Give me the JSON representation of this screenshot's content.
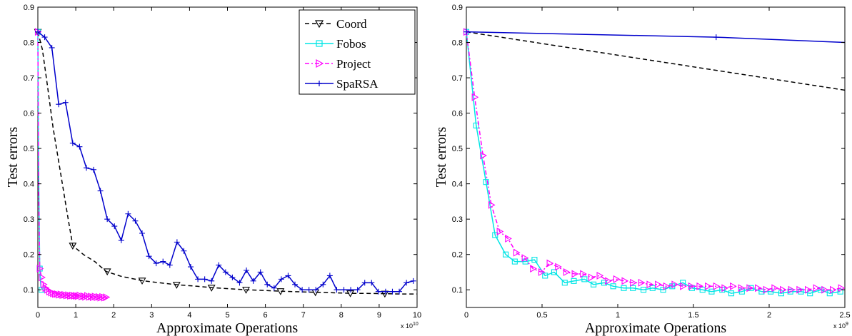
{
  "chart_data": [
    {
      "type": "line",
      "xlabel": "Approximate Operations",
      "ylabel": "Test errors",
      "x_multiplier_base": "x 10",
      "x_multiplier_exp": "10",
      "xlim": [
        0,
        10
      ],
      "ylim": [
        0.05,
        0.9
      ],
      "x_ticks": [
        "0",
        "1",
        "2",
        "3",
        "4",
        "5",
        "6",
        "7",
        "8",
        "9",
        "10"
      ],
      "y_ticks": [
        "0.1",
        "0.2",
        "0.3",
        "0.4",
        "0.5",
        "0.6",
        "0.7",
        "0.8",
        "0.9"
      ],
      "legend": "top-right",
      "series": [
        {
          "name": "Coord",
          "color": "#000000",
          "dash": "6,4",
          "marker": "triangle-down",
          "x": [
            0,
            0.12,
            0.25,
            0.4,
            0.6,
            0.8,
            0.92,
            1.2,
            1.5,
            1.8,
            2.2,
            2.75,
            3.2,
            3.7,
            4.2,
            4.6,
            5.2,
            5.5,
            6.0,
            6.4,
            7.0,
            7.3,
            8.0,
            8.25,
            8.6,
            9.15,
            9.6,
            10.0
          ],
          "y": [
            0.83,
            0.78,
            0.68,
            0.56,
            0.43,
            0.3,
            0.225,
            0.2,
            0.18,
            0.152,
            0.138,
            0.126,
            0.12,
            0.114,
            0.11,
            0.106,
            0.102,
            0.1,
            0.098,
            0.096,
            0.094,
            0.093,
            0.091,
            0.09,
            0.09,
            0.089,
            0.088,
            0.088
          ],
          "marker_x": [
            0,
            0.92,
            1.83,
            2.75,
            3.66,
            4.58,
            5.49,
            6.4,
            7.32,
            8.24,
            9.15
          ],
          "marker_y": [
            0.83,
            0.225,
            0.152,
            0.126,
            0.114,
            0.106,
            0.1,
            0.096,
            0.093,
            0.09,
            0.089
          ]
        },
        {
          "name": "Fobos",
          "color": "#00e5e5",
          "dash": "",
          "marker": "square",
          "x": [
            0,
            0.02,
            0.05,
            0.08,
            0.12
          ],
          "y": [
            0.83,
            0.45,
            0.16,
            0.11,
            0.1
          ],
          "marker_x": [
            0,
            0.05,
            0.1
          ],
          "marker_y": [
            0.83,
            0.16,
            0.1
          ]
        },
        {
          "name": "Project",
          "color": "#ff00ff",
          "dash": "6,3,2,3",
          "marker": "triangle-right",
          "x": [
            0,
            0.02,
            0.05,
            0.1,
            0.15,
            0.2,
            0.25,
            0.3,
            0.35,
            0.4,
            0.45,
            0.5,
            0.55,
            0.6,
            0.65,
            0.7,
            0.75,
            0.8,
            0.85,
            0.9,
            0.95,
            1.0,
            1.05,
            1.1,
            1.15,
            1.2,
            1.25,
            1.3,
            1.35,
            1.4,
            1.45,
            1.5,
            1.55,
            1.6,
            1.65,
            1.7,
            1.75,
            1.8
          ],
          "y": [
            0.83,
            0.4,
            0.16,
            0.135,
            0.115,
            0.105,
            0.1,
            0.095,
            0.092,
            0.09,
            0.088,
            0.088,
            0.086,
            0.087,
            0.085,
            0.086,
            0.084,
            0.085,
            0.083,
            0.084,
            0.083,
            0.083,
            0.082,
            0.084,
            0.081,
            0.082,
            0.08,
            0.083,
            0.08,
            0.081,
            0.079,
            0.081,
            0.079,
            0.08,
            0.078,
            0.08,
            0.078,
            0.079
          ],
          "marker_x": [
            0,
            0.05,
            0.1,
            0.15,
            0.2,
            0.25,
            0.3,
            0.35,
            0.4,
            0.45,
            0.5,
            0.55,
            0.6,
            0.65,
            0.7,
            0.75,
            0.8,
            0.85,
            0.9,
            0.95,
            1.0,
            1.05,
            1.1,
            1.15,
            1.2,
            1.25,
            1.3,
            1.35,
            1.4,
            1.45,
            1.5,
            1.55,
            1.6,
            1.65,
            1.7,
            1.75,
            1.8
          ],
          "marker_y": [
            0.83,
            0.16,
            0.135,
            0.115,
            0.105,
            0.1,
            0.095,
            0.092,
            0.09,
            0.088,
            0.088,
            0.086,
            0.087,
            0.085,
            0.086,
            0.084,
            0.085,
            0.083,
            0.084,
            0.083,
            0.083,
            0.082,
            0.084,
            0.081,
            0.082,
            0.08,
            0.083,
            0.08,
            0.081,
            0.079,
            0.081,
            0.079,
            0.08,
            0.078,
            0.08,
            0.078,
            0.079
          ]
        },
        {
          "name": "SpaRSA",
          "color": "#0000cc",
          "dash": "",
          "marker": "plus",
          "x": [
            0,
            0.18,
            0.37,
            0.55,
            0.73,
            0.92,
            1.1,
            1.28,
            1.47,
            1.65,
            1.83,
            2.02,
            2.2,
            2.38,
            2.57,
            2.75,
            2.93,
            3.12,
            3.3,
            3.48,
            3.67,
            3.85,
            4.03,
            4.22,
            4.4,
            4.58,
            4.77,
            4.95,
            5.13,
            5.32,
            5.5,
            5.68,
            5.87,
            6.05,
            6.23,
            6.42,
            6.6,
            6.78,
            6.97,
            7.15,
            7.33,
            7.52,
            7.7,
            7.88,
            8.07,
            8.25,
            8.43,
            8.62,
            8.8,
            8.98,
            9.17,
            9.35,
            9.53,
            9.72,
            9.9
          ],
          "y": [
            0.83,
            0.815,
            0.785,
            0.625,
            0.63,
            0.515,
            0.505,
            0.445,
            0.44,
            0.38,
            0.3,
            0.28,
            0.24,
            0.315,
            0.295,
            0.26,
            0.195,
            0.175,
            0.18,
            0.17,
            0.235,
            0.21,
            0.165,
            0.13,
            0.13,
            0.125,
            0.17,
            0.15,
            0.135,
            0.12,
            0.155,
            0.125,
            0.15,
            0.115,
            0.105,
            0.13,
            0.14,
            0.115,
            0.1,
            0.1,
            0.1,
            0.115,
            0.14,
            0.1,
            0.1,
            0.1,
            0.1,
            0.12,
            0.12,
            0.095,
            0.095,
            0.095,
            0.095,
            0.12,
            0.125
          ]
        }
      ]
    },
    {
      "type": "line",
      "xlabel": "Approximate Operations",
      "ylabel": "Test errors",
      "x_multiplier_base": "x 10",
      "x_multiplier_exp": "9",
      "xlim": [
        0,
        2.5
      ],
      "ylim": [
        0.05,
        0.9
      ],
      "x_ticks": [
        "0",
        "0.5",
        "1",
        "1.5",
        "2",
        "2.5"
      ],
      "y_ticks": [
        "0.1",
        "0.2",
        "0.3",
        "0.4",
        "0.5",
        "0.6",
        "0.7",
        "0.8",
        "0.9"
      ],
      "series": [
        {
          "name": "Coord",
          "color": "#000000",
          "dash": "6,4",
          "marker": "none",
          "x": [
            0,
            2.5
          ],
          "y": [
            0.83,
            0.665
          ]
        },
        {
          "name": "Fobos",
          "color": "#00e5e5",
          "dash": "",
          "marker": "square",
          "x": [
            0,
            0.065,
            0.13,
            0.19,
            0.26,
            0.32,
            0.39,
            0.45,
            0.52,
            0.58,
            0.65,
            0.71,
            0.78,
            0.84,
            0.91,
            0.97,
            1.04,
            1.1,
            1.17,
            1.23,
            1.3,
            1.36,
            1.43,
            1.49,
            1.56,
            1.62,
            1.69,
            1.75,
            1.82,
            1.88,
            1.95,
            2.01,
            2.08,
            2.14,
            2.21,
            2.27,
            2.34,
            2.4,
            2.47
          ],
          "y": [
            0.83,
            0.565,
            0.405,
            0.255,
            0.2,
            0.18,
            0.18,
            0.185,
            0.14,
            0.15,
            0.12,
            0.125,
            0.13,
            0.115,
            0.12,
            0.11,
            0.105,
            0.105,
            0.1,
            0.105,
            0.1,
            0.11,
            0.12,
            0.105,
            0.1,
            0.095,
            0.1,
            0.09,
            0.095,
            0.105,
            0.095,
            0.095,
            0.09,
            0.095,
            0.095,
            0.09,
            0.1,
            0.09,
            0.095
          ]
        },
        {
          "name": "Project",
          "color": "#ff00ff",
          "dash": "6,3,2,3",
          "marker": "triangle-right",
          "x": [
            0,
            0.055,
            0.11,
            0.165,
            0.22,
            0.275,
            0.33,
            0.385,
            0.44,
            0.495,
            0.55,
            0.605,
            0.66,
            0.715,
            0.77,
            0.825,
            0.88,
            0.935,
            0.99,
            1.045,
            1.1,
            1.155,
            1.21,
            1.265,
            1.32,
            1.375,
            1.43,
            1.485,
            1.54,
            1.595,
            1.65,
            1.705,
            1.76,
            1.815,
            1.87,
            1.925,
            1.98,
            2.035,
            2.09,
            2.145,
            2.2,
            2.255,
            2.31,
            2.365,
            2.42,
            2.475
          ],
          "y": [
            0.83,
            0.645,
            0.48,
            0.34,
            0.265,
            0.245,
            0.205,
            0.19,
            0.16,
            0.15,
            0.175,
            0.165,
            0.15,
            0.145,
            0.145,
            0.135,
            0.14,
            0.125,
            0.13,
            0.125,
            0.12,
            0.12,
            0.115,
            0.115,
            0.11,
            0.115,
            0.11,
            0.11,
            0.11,
            0.11,
            0.11,
            0.105,
            0.11,
            0.105,
            0.105,
            0.105,
            0.1,
            0.105,
            0.1,
            0.1,
            0.1,
            0.1,
            0.105,
            0.1,
            0.1,
            0.105
          ]
        },
        {
          "name": "SpaRSA",
          "color": "#0000cc",
          "dash": "",
          "marker": "plus",
          "x": [
            0,
            1.65,
            2.5
          ],
          "y": [
            0.83,
            0.815,
            0.8
          ],
          "marker_x": [
            0,
            1.65
          ],
          "marker_y": [
            0.83,
            0.815
          ]
        }
      ]
    }
  ],
  "legend": {
    "items": [
      "Coord",
      "Fobos",
      "Project",
      "SpaRSA"
    ]
  }
}
